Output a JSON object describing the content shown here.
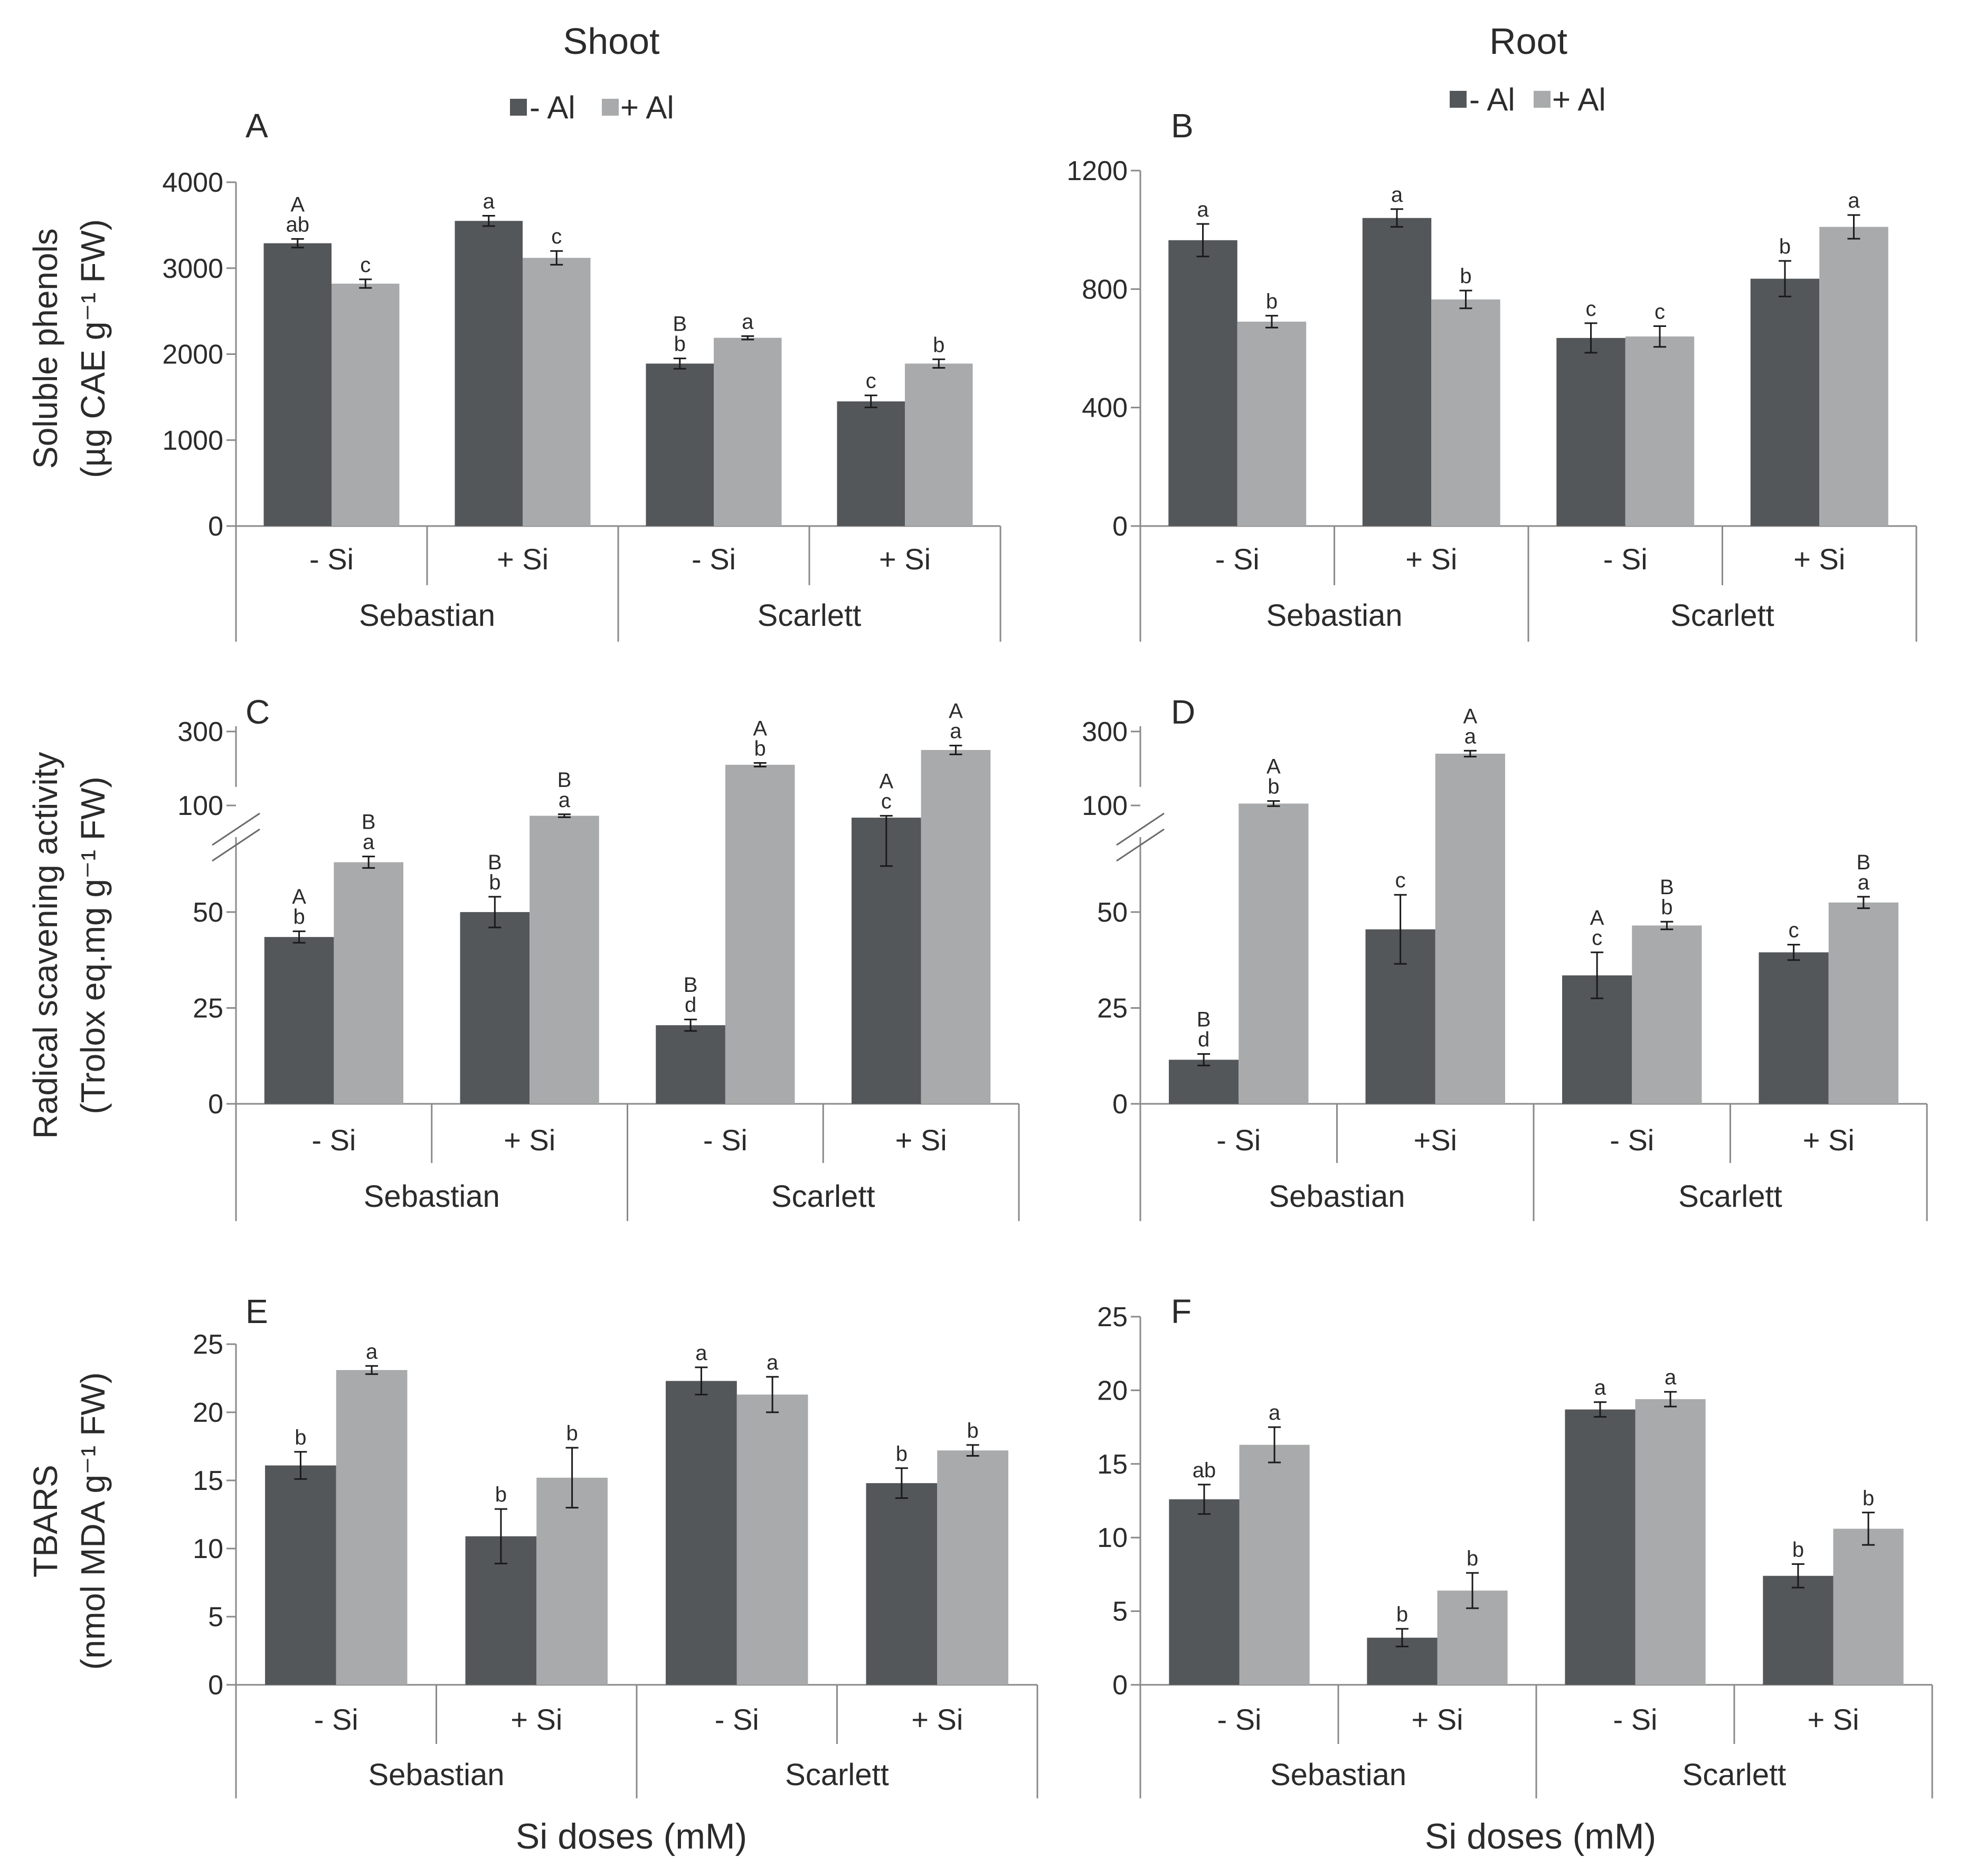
{
  "figure": {
    "column_titles": [
      "Shoot",
      "Root"
    ],
    "x_axis_title": "Si doses (mM)",
    "legend": [
      {
        "name": "- Al",
        "color": "#53575a"
      },
      {
        "name": "+ Al",
        "color": "#a8aaab"
      }
    ],
    "row_ylabels": [
      {
        "line1": "Soluble phenols",
        "line2": "(µg CAE g⁻¹ FW)"
      },
      {
        "line1": "Radical scavening activity",
        "line2": "(Trolox eq.mg  g⁻¹ FW)"
      },
      {
        "line1": "TBARS",
        "line2": "(nmol MDA  g⁻¹ FW)"
      }
    ]
  },
  "chart_data": [
    {
      "panel": "A",
      "type": "bar",
      "column": "Shoot",
      "ylim": [
        0,
        4000
      ],
      "yticks": [
        "0",
        "1000",
        "2000",
        "3000",
        "4000"
      ],
      "categories": [
        "- Si",
        "+ Si",
        "- Si",
        "+ Si"
      ],
      "groups": [
        "Sebastian",
        "Scarlett"
      ],
      "series": [
        {
          "name": "- Al",
          "values": [
            3290,
            3550,
            1890,
            1450
          ],
          "errors": [
            50,
            60,
            60,
            70
          ],
          "labels": [
            [
              "A",
              "ab"
            ],
            [
              "a"
            ],
            [
              "B",
              "b"
            ],
            [
              "c"
            ]
          ]
        },
        {
          "name": "+ Al",
          "values": [
            2820,
            3120,
            2190,
            1890
          ],
          "errors": [
            50,
            80,
            20,
            50
          ],
          "labels": [
            [
              "c"
            ],
            [
              "c"
            ],
            [
              "a"
            ],
            [
              "b"
            ]
          ]
        }
      ]
    },
    {
      "panel": "B",
      "type": "bar",
      "column": "Root",
      "ylim": [
        0,
        1200
      ],
      "yticks": [
        "0",
        "400",
        "800",
        "1200"
      ],
      "categories": [
        "- Si",
        "+ Si",
        "- Si",
        "+ Si"
      ],
      "groups": [
        "Sebastian",
        "Scarlett"
      ],
      "series": [
        {
          "name": "- Al",
          "values": [
            965,
            1040,
            635,
            835
          ],
          "errors": [
            55,
            30,
            50,
            60
          ],
          "labels": [
            [
              "a"
            ],
            [
              "a"
            ],
            [
              "c"
            ],
            [
              "b"
            ]
          ]
        },
        {
          "name": "+ Al",
          "values": [
            690,
            765,
            640,
            1010
          ],
          "errors": [
            20,
            30,
            35,
            40
          ],
          "labels": [
            [
              "b"
            ],
            [
              "b"
            ],
            [
              "c"
            ],
            [
              "a"
            ]
          ]
        }
      ]
    },
    {
      "panel": "C",
      "type": "bar",
      "column": "Shoot",
      "axis_break": true,
      "ylim_lower": [
        0,
        65
      ],
      "ylim_upper": [
        100,
        300
      ],
      "yticks": [
        "0",
        "25",
        "50",
        "100",
        "300"
      ],
      "categories": [
        "- Si",
        "+ Si",
        "- Si",
        "+ Si"
      ],
      "groups": [
        "Sebastian",
        "Scarlett"
      ],
      "series": [
        {
          "name": "- Al",
          "values": [
            43.5,
            50,
            20.5,
            67
          ],
          "errors": [
            1.5,
            4,
            1.5,
            5
          ],
          "labels": [
            [
              "A",
              "b"
            ],
            [
              "B",
              "b"
            ],
            [
              "B",
              "d"
            ],
            [
              "A",
              "c"
            ]
          ]
        },
        {
          "name": "+ Al",
          "values": [
            63,
            72,
            210,
            250
          ],
          "errors": [
            1.5,
            4,
            5,
            12
          ],
          "labels": [
            [
              "B",
              "a"
            ],
            [
              "B",
              "a"
            ],
            [
              "A",
              "b"
            ],
            [
              "A",
              "a"
            ]
          ]
        }
      ]
    },
    {
      "panel": "D",
      "type": "bar",
      "column": "Root",
      "axis_break": true,
      "ylim_lower": [
        0,
        65
      ],
      "ylim_upper": [
        100,
        300
      ],
      "yticks": [
        "0",
        "25",
        "50",
        "100",
        "300"
      ],
      "categories": [
        "- Si",
        "+Si",
        "- Si",
        "+ Si"
      ],
      "groups": [
        "Sebastian",
        "Scarlett"
      ],
      "series": [
        {
          "name": "- Al",
          "values": [
            11.5,
            45.5,
            33.5,
            39.5
          ],
          "errors": [
            1.5,
            9,
            6,
            2
          ],
          "labels": [
            [
              "B",
              "d"
            ],
            [
              "c"
            ],
            [
              "A",
              "c"
            ],
            [
              "c"
            ]
          ]
        },
        {
          "name": "+ Al",
          "values": [
            105,
            240,
            46.5,
            52.5
          ],
          "errors": [
            7,
            8,
            1,
            1.5
          ],
          "labels": [
            [
              "A",
              "b"
            ],
            [
              "A",
              "a"
            ],
            [
              "B",
              "b"
            ],
            [
              "B",
              "a"
            ]
          ]
        }
      ]
    },
    {
      "panel": "E",
      "type": "bar",
      "column": "Shoot",
      "ylim": [
        0,
        25
      ],
      "yticks": [
        "0",
        "5",
        "10",
        "15",
        "20",
        "25"
      ],
      "categories": [
        "- Si",
        "+ Si",
        "- Si",
        "+ Si"
      ],
      "groups": [
        "Sebastian",
        "Scarlett"
      ],
      "series": [
        {
          "name": "- Al",
          "values": [
            16.1,
            10.9,
            22.3,
            14.8
          ],
          "errors": [
            1,
            2,
            1,
            1.1
          ],
          "labels": [
            [
              "b"
            ],
            [
              "b"
            ],
            [
              "a"
            ],
            [
              "b"
            ]
          ]
        },
        {
          "name": "+ Al",
          "values": [
            23.1,
            15.2,
            21.3,
            17.2
          ],
          "errors": [
            0.3,
            2.2,
            1.3,
            0.4
          ],
          "labels": [
            [
              "a"
            ],
            [
              "b"
            ],
            [
              "a"
            ],
            [
              "b"
            ]
          ]
        }
      ]
    },
    {
      "panel": "F",
      "type": "bar",
      "column": "Root",
      "ylim": [
        0,
        25
      ],
      "yticks": [
        "0",
        "5",
        "10",
        "15",
        "20",
        "25"
      ],
      "categories": [
        "- Si",
        "+ Si",
        "- Si",
        "+ Si"
      ],
      "groups": [
        "Sebastian",
        "Scarlett"
      ],
      "series": [
        {
          "name": "- Al",
          "values": [
            12.6,
            3.2,
            18.7,
            7.4
          ],
          "errors": [
            1,
            0.6,
            0.5,
            0.8
          ],
          "labels": [
            [
              "ab"
            ],
            [
              "b"
            ],
            [
              "a"
            ],
            [
              "b"
            ]
          ]
        },
        {
          "name": "+ Al",
          "values": [
            16.3,
            6.4,
            19.4,
            10.6
          ],
          "errors": [
            1.2,
            1.2,
            0.5,
            1.1
          ],
          "labels": [
            [
              "a"
            ],
            [
              "b"
            ],
            [
              "a"
            ],
            [
              "b"
            ]
          ]
        }
      ]
    }
  ]
}
